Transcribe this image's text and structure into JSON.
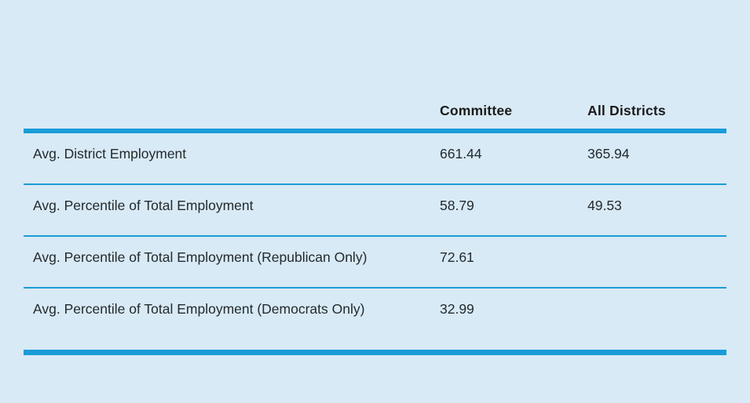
{
  "chart_data": {
    "type": "table",
    "title": "",
    "columns": [
      "",
      "Committee",
      "All Districts"
    ],
    "rows": [
      {
        "label": "Avg. District Employment",
        "committee": "661.44",
        "all_districts": "365.94"
      },
      {
        "label": "Avg. Percentile of Total Employment",
        "committee": "58.79",
        "all_districts": "49.53"
      },
      {
        "label": "Avg. Percentile of Total Employment (Republican Only)",
        "committee": "72.61",
        "all_districts": ""
      },
      {
        "label": "Avg. Percentile of Total Employment (Democrats Only)",
        "committee": "32.99",
        "all_districts": ""
      }
    ],
    "layout": {
      "grid": "horizontal rules only",
      "header_rule": "thick",
      "bottom_rule": "thick",
      "row_rules": "thin"
    },
    "colors": {
      "background": "#d8eaf5",
      "rule_accent": "#1a9cd8",
      "text": "#232a2f",
      "header_text": "#1b1b1b"
    }
  }
}
